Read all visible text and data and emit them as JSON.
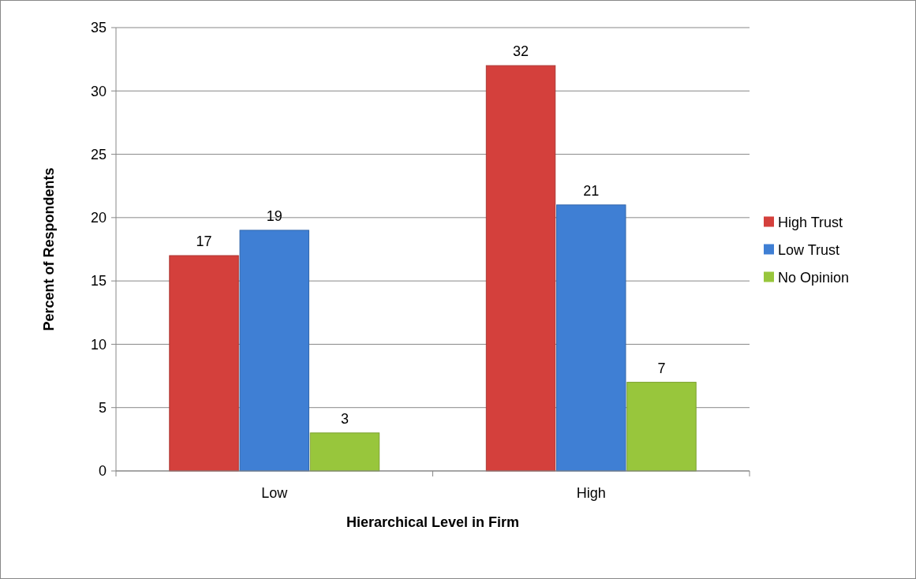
{
  "chart_data": {
    "type": "bar",
    "xlabel": "Hierarchical Level in Firm",
    "ylabel": "Percent of Respondents",
    "categories": [
      "Low",
      "High"
    ],
    "series": [
      {
        "name": "High Trust",
        "color": "#d4403c",
        "values": [
          17,
          32
        ]
      },
      {
        "name": "Low Trust",
        "color": "#3f7fd4",
        "values": [
          19,
          21
        ]
      },
      {
        "name": "No Opinion",
        "color": "#98c63c",
        "values": [
          3,
          7
        ]
      }
    ],
    "ylim": [
      0,
      35
    ],
    "yticks": [
      0,
      5,
      10,
      15,
      20,
      25,
      30,
      35
    ],
    "grid": "y",
    "legend": "right",
    "data_labels": true
  }
}
